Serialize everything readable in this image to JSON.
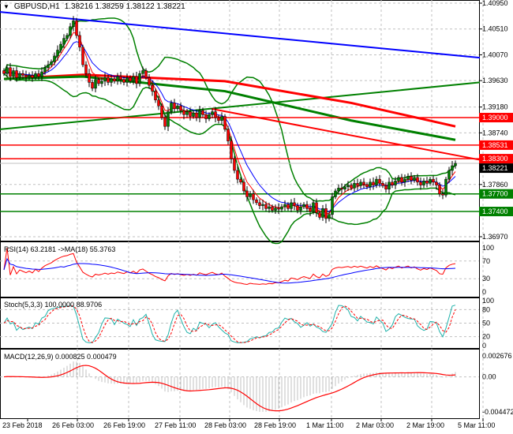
{
  "header": {
    "symbol": "GBPUSD,H1",
    "ohlc": "1.38216 1.38259 1.38122 1.38221"
  },
  "chart_data": {
    "type": "candlestick",
    "symbol": "GBPUSD",
    "timeframe": "H1",
    "ylim": [
      1.3697,
      1.4095
    ],
    "price_ticks": [
      "1.40950",
      "1.40510",
      "1.40070",
      "1.39630",
      "1.39180",
      "1.38740",
      "1.38300",
      "1.37860",
      "1.37400",
      "1.36970"
    ],
    "time_ticks": [
      "23 Feb 2018",
      "26 Feb 03:00",
      "26 Feb 19:00",
      "27 Feb 11:00",
      "28 Feb 03:00",
      "28 Feb 19:00",
      "1 Mar 11:00",
      "2 Mar 03:00",
      "2 Mar 19:00",
      "5 Mar 11:00"
    ],
    "close": [
      1.3975,
      1.3985,
      1.397,
      1.398,
      1.3968,
      1.3975,
      1.3972,
      1.3969,
      1.3972,
      1.3968,
      1.3975,
      1.397,
      1.3978,
      1.3985,
      1.399,
      1.3995,
      1.4005,
      1.4015,
      1.4025,
      1.4035,
      1.404,
      1.4055,
      1.4065,
      1.404,
      1.402,
      1.399,
      1.3975,
      1.396,
      1.395,
      1.3965,
      1.3958,
      1.3962,
      1.3968,
      1.396,
      1.3966,
      1.3962,
      1.397,
      1.3965,
      1.396,
      1.3968,
      1.3962,
      1.397,
      1.3958,
      1.3975,
      1.398,
      1.3968,
      1.3955,
      1.3945,
      1.393,
      1.392,
      1.39,
      1.3885,
      1.391,
      1.3925,
      1.3915,
      1.392,
      1.3912,
      1.3905,
      1.391,
      1.3902,
      1.3908,
      1.39,
      1.3912,
      1.3905,
      1.3898,
      1.3905,
      1.391,
      1.39,
      1.3895,
      1.3902,
      1.388,
      1.386,
      1.383,
      1.381,
      1.3795,
      1.379,
      1.3775,
      1.3765,
      1.377,
      1.376,
      1.3755,
      1.375,
      1.3752,
      1.3745,
      1.3748,
      1.3742,
      1.3746,
      1.3744,
      1.3748,
      1.3752,
      1.3745,
      1.3755,
      1.375,
      1.3742,
      1.3748,
      1.3752,
      1.3745,
      1.374,
      1.3755,
      1.3738,
      1.373,
      1.3745,
      1.3728,
      1.3735,
      1.3765,
      1.3775,
      1.378,
      1.3778,
      1.3782,
      1.3785,
      1.378,
      1.3788,
      1.3784,
      1.379,
      1.3786,
      1.3782,
      1.379,
      1.3785,
      1.3795,
      1.3788,
      1.3784,
      1.3778,
      1.379,
      1.3785,
      1.3792,
      1.3798,
      1.379,
      1.3795,
      1.38,
      1.3793,
      1.3798,
      1.379,
      1.3785,
      1.3792,
      1.3788,
      1.3795,
      1.379,
      1.3785,
      1.377,
      1.3768,
      1.3795,
      1.381,
      1.3818,
      1.3822
    ],
    "current_price": "1.38221",
    "levels": [
      {
        "price": 1.39,
        "label": "1.39000",
        "color": "#ff0000"
      },
      {
        "price": 1.38531,
        "label": "1.38531",
        "color": "#ff0000"
      },
      {
        "price": 1.383,
        "label": "1.38300",
        "color": "#ff0000"
      },
      {
        "price": 1.377,
        "label": "1.37700",
        "color": "#008000"
      },
      {
        "price": 1.374,
        "label": "1.37400",
        "color": "#008000"
      }
    ],
    "trendlines": [
      {
        "color": "#0000ff",
        "points": [
          [
            0,
            1.408
          ],
          [
            151,
            1.4002
          ]
        ]
      },
      {
        "color": "#008000",
        "points": [
          [
            0,
            1.388
          ],
          [
            151,
            1.396
          ]
        ]
      },
      {
        "color": "#ff0000",
        "points": [
          [
            66,
            1.3915
          ],
          [
            151,
            1.3828
          ]
        ]
      }
    ],
    "long_ma": [
      {
        "color": "#ff0000",
        "points": [
          [
            0,
            1.3966
          ],
          [
            25,
            1.3973
          ],
          [
            70,
            1.3962
          ],
          [
            110,
            1.3925
          ],
          [
            143,
            1.3885
          ]
        ]
      },
      {
        "color": "#008000",
        "points": [
          [
            0,
            1.3966
          ],
          [
            25,
            1.397
          ],
          [
            70,
            1.3945
          ],
          [
            110,
            1.3895
          ],
          [
            143,
            1.3862
          ]
        ]
      }
    ],
    "indicators": {
      "rsi": {
        "label": "RSI(14) 63.2181  ->MA(18) 55.3763",
        "ticks": [
          "100",
          "70",
          "30",
          "0"
        ]
      },
      "stoch": {
        "label": "Stoch(5,3,3) 100.0000 88.9706",
        "ticks": [
          "100",
          "80",
          "50",
          "20",
          "0"
        ]
      },
      "macd": {
        "label": "MACD(12,26,9) 0.000825 0.000479",
        "ticks": [
          "0.002676",
          "0.00",
          "-0.004472"
        ],
        "range": [
          -0.004472,
          0.002676
        ]
      }
    },
    "colors": {
      "bull": "#008000",
      "bear": "#ff0000",
      "ma_fast": "#ff0000",
      "ma_slow": "#0000ff",
      "bands": "#008000",
      "stoch_main": "#20b2aa",
      "stoch_signal": "#ff0000",
      "macd_hist": "#c0c0c0",
      "macd_signal": "#ff0000"
    }
  }
}
